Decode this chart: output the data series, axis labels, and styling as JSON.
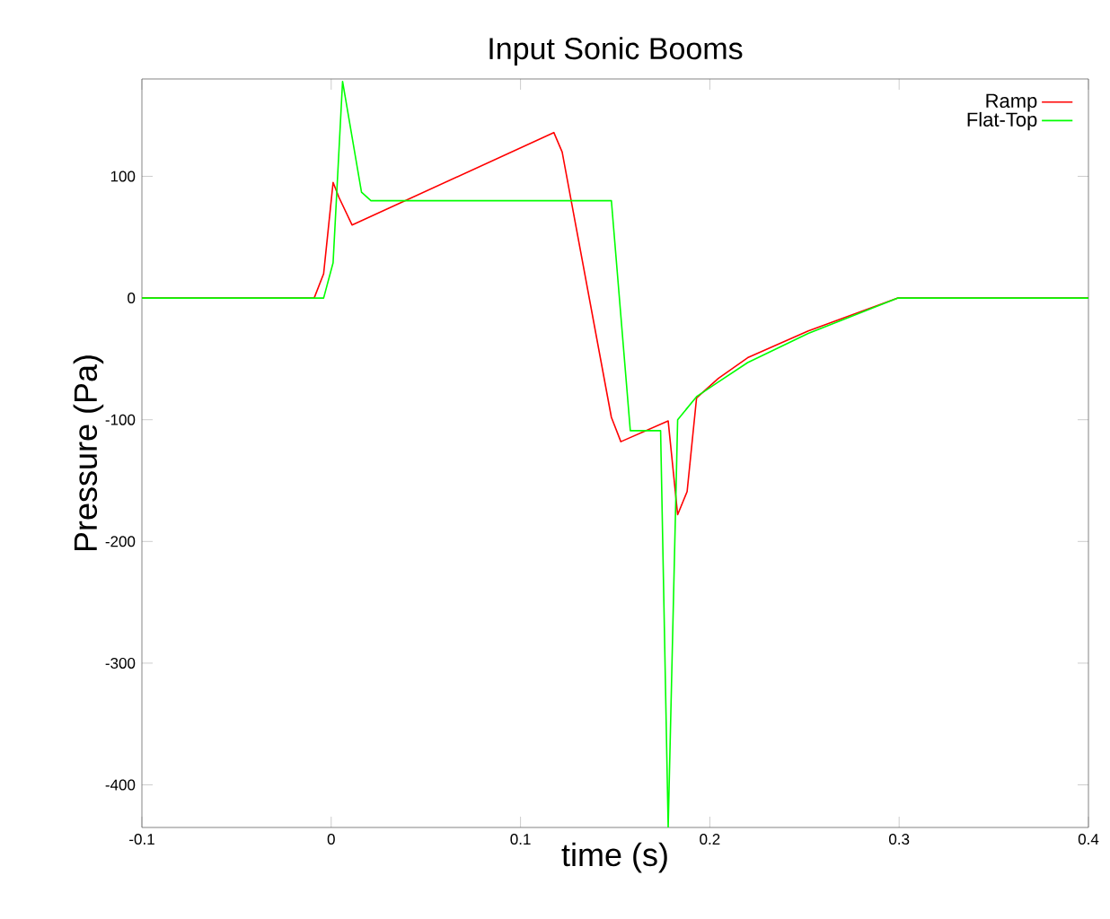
{
  "chart_data": {
    "type": "line",
    "title": "Input Sonic Booms",
    "xlabel": "time (s)",
    "ylabel": "Pressure (Pa)",
    "xlim": [
      -0.1,
      0.4
    ],
    "ylim": [
      -435,
      180
    ],
    "xticks": [
      -0.1,
      0,
      0.1,
      0.2,
      0.3,
      0.4
    ],
    "yticks": [
      -400,
      -300,
      -200,
      -100,
      0,
      100
    ],
    "grid": false,
    "legend": "top right",
    "marker": "none",
    "line_style": "solid",
    "series": [
      {
        "name": "Ramp",
        "color": "#ff0000",
        "x": [
          -0.1,
          -0.009,
          -0.004,
          0.001,
          0.004,
          0.011,
          0.1176,
          0.122,
          0.148,
          0.153,
          0.178,
          0.183,
          0.188,
          0.193,
          0.2045,
          0.22,
          0.252,
          0.2994,
          0.4
        ],
        "values": [
          0,
          0,
          20,
          95,
          83,
          60,
          136,
          120,
          -98,
          -118,
          -101,
          -178,
          -159,
          -82,
          -66,
          -49,
          -27,
          0,
          0
        ]
      },
      {
        "name": "Flat-Top",
        "color": "#00ff00",
        "x": [
          -0.1,
          -0.004,
          0.001,
          0.006,
          0.016,
          0.021,
          0.148,
          0.158,
          0.174,
          0.178,
          0.183,
          0.193,
          0.2045,
          0.22,
          0.252,
          0.2994,
          0.4
        ],
        "values": [
          0,
          0,
          29,
          178,
          87,
          80,
          80,
          -109,
          -109,
          -435,
          -100,
          -81,
          -69,
          -53,
          -29,
          0,
          0
        ]
      }
    ]
  }
}
